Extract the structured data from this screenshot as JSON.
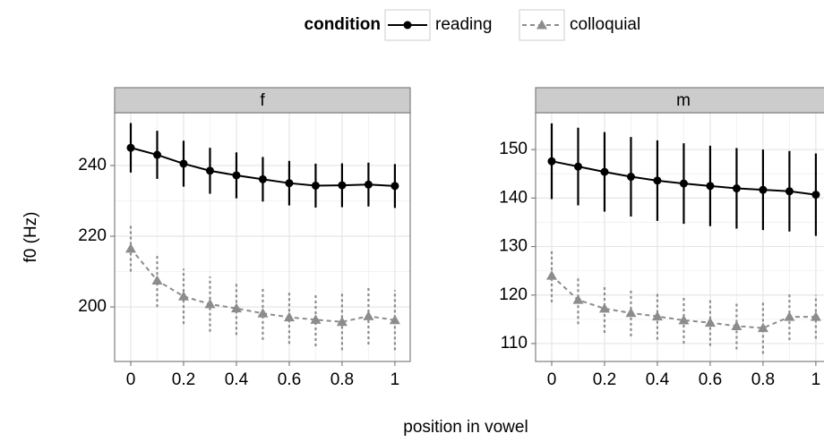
{
  "legend_title": "condition",
  "xlabel": "position in vowel",
  "ylabel": "f0 (Hz)",
  "chart_data": [
    {
      "type": "line",
      "title": "f",
      "x": [
        0,
        0.1,
        0.2,
        0.3,
        0.4,
        0.5,
        0.6,
        0.7,
        0.8,
        0.9,
        1
      ],
      "xlim": [
        -0.061,
        1.058
      ],
      "xticks": [
        0,
        0.2,
        0.4,
        0.6,
        0.8,
        1
      ],
      "ylim": [
        184.6,
        254.9
      ],
      "yticks": [
        200,
        220,
        240
      ],
      "grid": true,
      "series": [
        {
          "name": "reading",
          "color": "#000000",
          "linestyle": "solid",
          "marker": "circle",
          "values": [
            245,
            243,
            240.5,
            238.5,
            237.2,
            236.1,
            235,
            234.3,
            234.4,
            234.6,
            234.2
          ],
          "errors": [
            7,
            6.8,
            6.5,
            6.5,
            6.5,
            6.3,
            6.3,
            6.2,
            6.2,
            6.2,
            6.2
          ]
        },
        {
          "name": "colloquial",
          "color": "#8c8c8c",
          "linestyle": "dashed",
          "marker": "triangle",
          "values": [
            216.5,
            207.5,
            203,
            200.8,
            199.6,
            198.2,
            197.1,
            196.4,
            195.8,
            197.4,
            196.3
          ],
          "errors": [
            6.5,
            7.5,
            7.8,
            7.8,
            7.5,
            7.5,
            7.5,
            7.5,
            8,
            8,
            8.5
          ]
        }
      ]
    },
    {
      "type": "line",
      "title": "m",
      "x": [
        0,
        0.1,
        0.2,
        0.3,
        0.4,
        0.5,
        0.6,
        0.7,
        0.8,
        0.9,
        1
      ],
      "xlim": [
        -0.061,
        1.058
      ],
      "xticks": [
        0,
        0.2,
        0.4,
        0.6,
        0.8,
        1
      ],
      "ylim": [
        106.3,
        157.6
      ],
      "yticks": [
        110,
        120,
        130,
        140,
        150
      ],
      "grid": true,
      "series": [
        {
          "name": "reading",
          "color": "#000000",
          "linestyle": "solid",
          "marker": "circle",
          "values": [
            147.6,
            146.5,
            145.4,
            144.4,
            143.6,
            143,
            142.5,
            142,
            141.7,
            141.4,
            140.7
          ],
          "errors": [
            7.8,
            8,
            8.2,
            8.2,
            8.3,
            8.3,
            8.3,
            8.3,
            8.3,
            8.3,
            8.5
          ]
        },
        {
          "name": "colloquial",
          "color": "#8c8c8c",
          "linestyle": "dashed",
          "marker": "triangle",
          "values": [
            124,
            119,
            117.2,
            116.3,
            115.6,
            114.8,
            114.3,
            113.6,
            113.2,
            115.5,
            115.5
          ],
          "errors": [
            5.5,
            5,
            5,
            4.8,
            4.8,
            4.8,
            4.8,
            4.8,
            5.3,
            4.8,
            4.5
          ]
        }
      ]
    }
  ]
}
